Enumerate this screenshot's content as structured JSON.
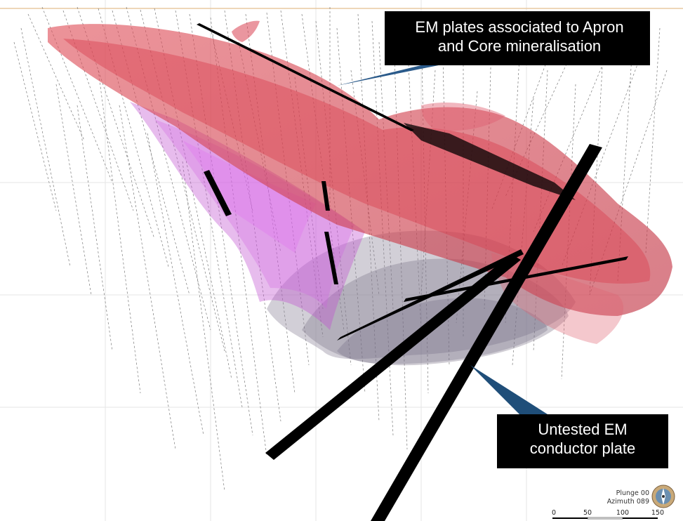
{
  "callouts": {
    "top": {
      "line1": "EM plates associated to Apron",
      "line2": "and Core mineralisation",
      "fill": "#000000"
    },
    "bottom": {
      "line1": "Untested EM",
      "line2": "conductor plate",
      "fill": "#1f4e79"
    }
  },
  "navigation": {
    "plunge": "Plunge 00",
    "azimuth": "Azimuth 089",
    "icon": "compass-icon"
  },
  "scale_bar": {
    "ticks": [
      "0",
      "50",
      "100",
      "150"
    ]
  },
  "colors": {
    "apron_body": "#e04050",
    "core_body": "#c050d0",
    "grey_body": "#8a8296",
    "em_plate": "#000000",
    "drillhole": "#777777"
  }
}
